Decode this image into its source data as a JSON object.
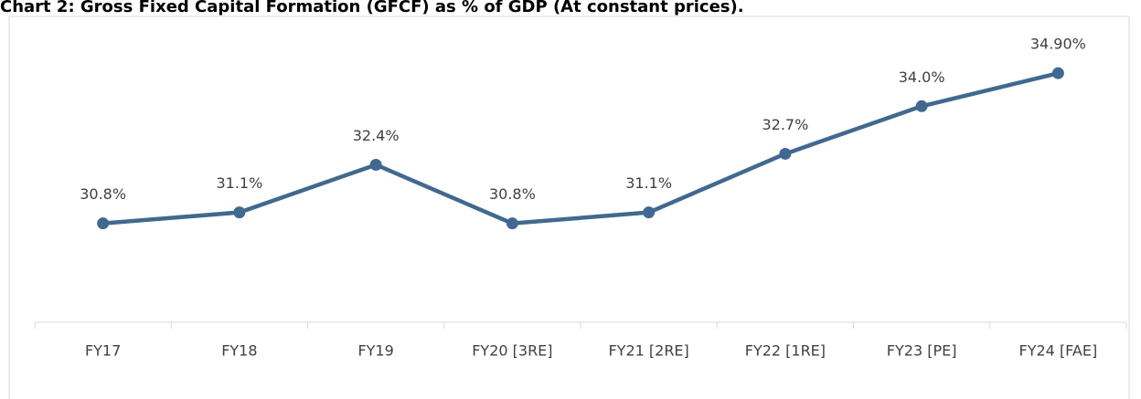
{
  "chart_data": {
    "type": "line",
    "title": "Chart 2: Gross Fixed Capital Formation (GFCF) as % of GDP (At constant prices).",
    "categories": [
      "FY17",
      "FY18",
      "FY19",
      "FY20 [3RE]",
      "FY21 [2RE]",
      "FY22 [1RE]",
      "FY23 [PE]",
      "FY24 [FAE]"
    ],
    "values": [
      30.8,
      31.1,
      32.4,
      30.8,
      31.1,
      32.7,
      34.0,
      34.9
    ],
    "value_labels": [
      "30.8%",
      "31.1%",
      "32.4%",
      "30.8%",
      "31.1%",
      "32.7%",
      "34.0%",
      "34.90%"
    ],
    "color": "#41698f",
    "ylim": [
      28.1,
      36.4
    ]
  }
}
